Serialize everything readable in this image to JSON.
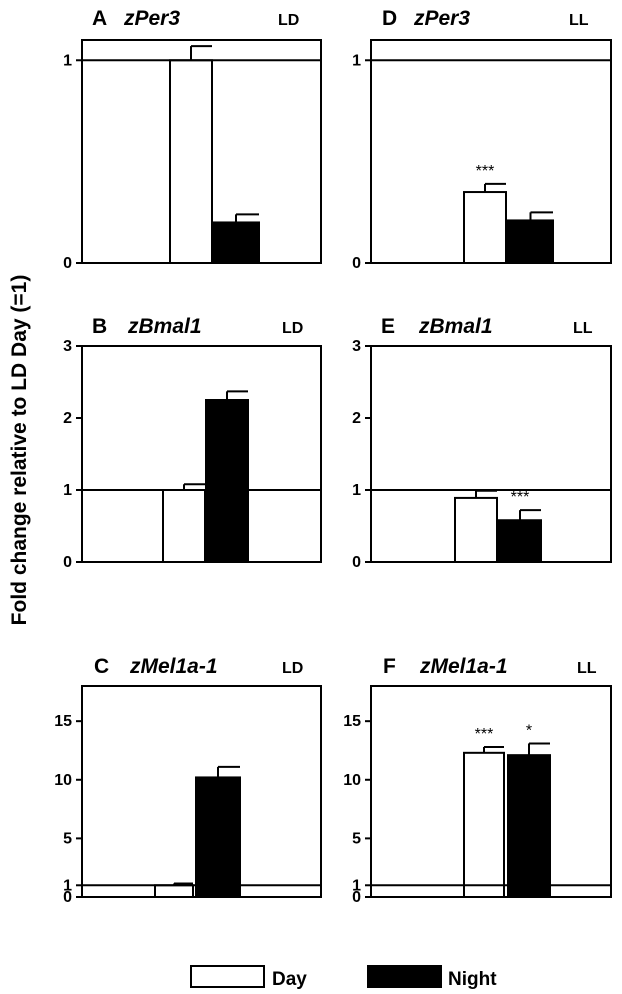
{
  "y_axis_title": "Fold change relative to LD Day (=1)",
  "legend": {
    "items": [
      {
        "label": "Day",
        "fill": "#ffffff"
      },
      {
        "label": "Night",
        "fill": "#000000"
      }
    ]
  },
  "colors": {
    "day": "#ffffff",
    "night": "#000000",
    "stroke": "#000000"
  },
  "chart_data": [
    {
      "type": "bar",
      "panel": "A",
      "gene": "zPer3",
      "condition": "LD",
      "series": [
        {
          "name": "Day",
          "values": [
            1.0
          ]
        },
        {
          "name": "Night",
          "values": [
            0.2
          ]
        }
      ],
      "errors": {
        "Day": [
          0.07
        ],
        "Night": [
          0.04
        ]
      },
      "ylim": [
        0,
        1.1
      ],
      "yticks": [
        0,
        1
      ],
      "reference_line": 1,
      "annotations": {
        "Day": "",
        "Night": ""
      }
    },
    {
      "type": "bar",
      "panel": "B",
      "gene": "zBmal1",
      "condition": "LD",
      "series": [
        {
          "name": "Day",
          "values": [
            1.0
          ]
        },
        {
          "name": "Night",
          "values": [
            2.25
          ]
        }
      ],
      "errors": {
        "Day": [
          0.08
        ],
        "Night": [
          0.12
        ]
      },
      "ylim": [
        0,
        3
      ],
      "yticks": [
        0,
        1,
        2,
        3
      ],
      "reference_line": 1,
      "annotations": {
        "Day": "",
        "Night": ""
      }
    },
    {
      "type": "bar",
      "panel": "C",
      "gene": "zMel1a-1",
      "condition": "LD",
      "series": [
        {
          "name": "Day",
          "values": [
            1.0
          ]
        },
        {
          "name": "Night",
          "values": [
            10.2
          ]
        }
      ],
      "errors": {
        "Day": [
          0.15
        ],
        "Night": [
          0.9
        ]
      },
      "ylim": [
        0,
        18
      ],
      "yticks": [
        0,
        1,
        5,
        10,
        15
      ],
      "reference_line": 1,
      "annotations": {
        "Day": "",
        "Night": ""
      }
    },
    {
      "type": "bar",
      "panel": "D",
      "gene": "zPer3",
      "condition": "LL",
      "series": [
        {
          "name": "Day",
          "values": [
            0.35
          ]
        },
        {
          "name": "Night",
          "values": [
            0.21
          ]
        }
      ],
      "errors": {
        "Day": [
          0.04
        ],
        "Night": [
          0.04
        ]
      },
      "ylim": [
        0,
        1.1
      ],
      "yticks": [
        0,
        1
      ],
      "reference_line": 1,
      "annotations": {
        "Day": "***",
        "Night": ""
      }
    },
    {
      "type": "bar",
      "panel": "E",
      "gene": "zBmal1",
      "condition": "LL",
      "series": [
        {
          "name": "Day",
          "values": [
            0.89
          ]
        },
        {
          "name": "Night",
          "values": [
            0.58
          ]
        }
      ],
      "errors": {
        "Day": [
          0.1
        ],
        "Night": [
          0.14
        ]
      },
      "ylim": [
        0,
        3
      ],
      "yticks": [
        0,
        1,
        2,
        3
      ],
      "reference_line": 1,
      "annotations": {
        "Day": "",
        "Night": "***"
      }
    },
    {
      "type": "bar",
      "panel": "F",
      "gene": "zMel1a-1",
      "condition": "LL",
      "series": [
        {
          "name": "Day",
          "values": [
            12.3
          ]
        },
        {
          "name": "Night",
          "values": [
            12.1
          ]
        }
      ],
      "errors": {
        "Day": [
          0.5
        ],
        "Night": [
          1.0
        ]
      },
      "ylim": [
        0,
        18
      ],
      "yticks": [
        0,
        1,
        5,
        10,
        15
      ],
      "reference_line": 1,
      "annotations": {
        "Day": "***",
        "Night": "*"
      }
    }
  ]
}
